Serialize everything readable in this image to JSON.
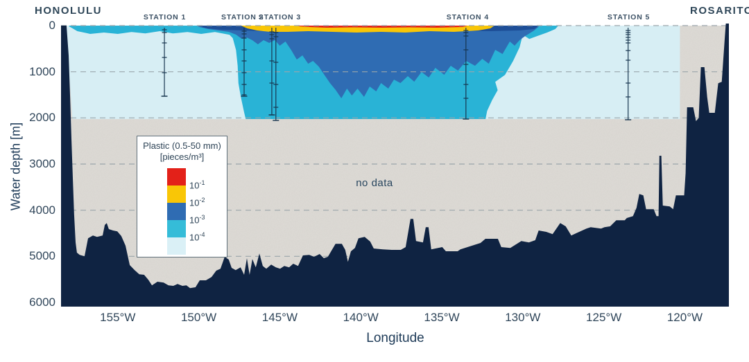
{
  "chart_data": {
    "type": "area",
    "subtype": "ocean-transect-filled-contour",
    "endpoints": {
      "left": "HONOLULU",
      "right": "ROSARITO"
    },
    "x_axis": {
      "label": "Longitude",
      "tick_values": [
        155,
        150,
        145,
        140,
        135,
        130,
        125,
        120
      ],
      "tick_suffix": "°W",
      "domain_degW": [
        158.5,
        117.28
      ]
    },
    "y_axis": {
      "label": "Water depth [m]",
      "tick_values": [
        0,
        1000,
        2000,
        3000,
        4000,
        5000,
        6000
      ],
      "domain": [
        0,
        6000
      ]
    },
    "gridline_depths": [
      0,
      1000,
      2000,
      3000,
      4000,
      5000
    ],
    "no_data_label": "no data",
    "data_region": {
      "lon_extent_degW": [
        158.2,
        120.3
      ],
      "depth_extent_m": [
        0,
        2025
      ]
    },
    "legend": {
      "title_line1": "Plastic (0.5-50 mm)",
      "title_line2": "[pieces/m³]",
      "bins": [
        {
          "color": "#e32119",
          "boundary_base": "10",
          "boundary_exp": "-1"
        },
        {
          "color": "#f9c606",
          "boundary_base": "10",
          "boundary_exp": "-2"
        },
        {
          "color": "#2f6cb3",
          "boundary_base": "10",
          "boundary_exp": "-3"
        },
        {
          "color": "#35bcd8",
          "boundary_base": "10",
          "boundary_exp": "-4"
        },
        {
          "color": "#daf0f6",
          "boundary_base": "",
          "boundary_exp": ""
        }
      ]
    },
    "stations": [
      {
        "label": "STATION 1",
        "label_lon": 152.1,
        "casts": [
          {
            "lon": 152.12,
            "max_depth": 1530,
            "tick_depths": [
              90,
              150,
              375,
              690,
              1020,
              1530
            ]
          }
        ]
      },
      {
        "label": "STATION 2",
        "label_lon": 147.3,
        "casts": [
          {
            "lon": 147.2,
            "max_depth": 1530,
            "tick_depths": [
              120,
              180,
              270,
              525,
              765,
              1020,
              1275,
              1500
            ]
          }
        ]
      },
      {
        "label": "STATION 3",
        "label_lon": 145.0,
        "casts": [
          {
            "lon": 145.49,
            "max_depth": 1935,
            "tick_depths": [
              135,
              195,
              285,
              765,
              1245,
              1935
            ]
          },
          {
            "lon": 145.24,
            "max_depth": 2055,
            "tick_depths": [
              150,
              240,
              795,
              1275,
              1770
            ]
          }
        ]
      },
      {
        "label": "STATION 4",
        "label_lon": 133.4,
        "casts": [
          {
            "lon": 133.51,
            "max_depth": 2025,
            "tick_depths": [
              105,
              150,
              225,
              525,
              840,
              1275,
              1575
            ]
          }
        ]
      },
      {
        "label": "STATION 5",
        "label_lon": 123.46,
        "casts": [
          {
            "lon": 123.5,
            "max_depth": 2040,
            "tick_depths": [
              105,
              150,
              195,
              255,
              315,
              375,
              540,
              750,
              1245,
              1545
            ]
          }
        ]
      }
    ],
    "bands": {
      "lightcyan": [
        [
          158.2,
          0
        ],
        [
          120.3,
          0
        ],
        [
          120.3,
          2025
        ],
        [
          157.8,
          2025
        ]
      ],
      "teal": [
        [
          158.0,
          0
        ],
        [
          127.8,
          0
        ],
        [
          128.0,
          75
        ],
        [
          128.5,
          150
        ],
        [
          129.1,
          225
        ],
        [
          129.6,
          290
        ],
        [
          130.0,
          200
        ],
        [
          130.2,
          470
        ],
        [
          130.6,
          770
        ],
        [
          131.1,
          1070
        ],
        [
          131.7,
          1220
        ],
        [
          131.55,
          1400
        ],
        [
          131.9,
          1620
        ],
        [
          132.2,
          1850
        ],
        [
          132.3,
          2025
        ],
        [
          147.1,
          2025
        ],
        [
          147.2,
          1880
        ],
        [
          147.4,
          1550
        ],
        [
          147.55,
          1250
        ],
        [
          147.6,
          870
        ],
        [
          147.7,
          530
        ],
        [
          147.9,
          270
        ],
        [
          148.1,
          200
        ],
        [
          149.0,
          140
        ],
        [
          149.85,
          180
        ],
        [
          150.7,
          140
        ],
        [
          151.6,
          170
        ],
        [
          152.4,
          120
        ],
        [
          153.3,
          170
        ],
        [
          154.15,
          140
        ],
        [
          155.0,
          180
        ],
        [
          155.85,
          150
        ],
        [
          156.7,
          180
        ],
        [
          157.5,
          120
        ],
        [
          157.86,
          45
        ],
        [
          158.0,
          20
        ]
      ],
      "blue": [
        [
          150.1,
          20
        ],
        [
          129.0,
          20
        ],
        [
          129.3,
          105
        ],
        [
          129.85,
          225
        ],
        [
          130.2,
          315
        ],
        [
          130.5,
          435
        ],
        [
          130.8,
          345
        ],
        [
          131.25,
          615
        ],
        [
          131.7,
          525
        ],
        [
          132.1,
          825
        ],
        [
          132.5,
          720
        ],
        [
          132.95,
          870
        ],
        [
          133.5,
          765
        ],
        [
          134.0,
          975
        ],
        [
          134.45,
          870
        ],
        [
          134.85,
          1065
        ],
        [
          135.4,
          915
        ],
        [
          135.8,
          1125
        ],
        [
          136.25,
          1005
        ],
        [
          136.7,
          1215
        ],
        [
          137.1,
          1095
        ],
        [
          137.55,
          1245
        ],
        [
          137.95,
          1170
        ],
        [
          138.3,
          1365
        ],
        [
          138.75,
          1245
        ],
        [
          139.05,
          1425
        ],
        [
          139.45,
          1320
        ],
        [
          139.8,
          1545
        ],
        [
          140.2,
          1365
        ],
        [
          140.55,
          1515
        ],
        [
          140.85,
          1365
        ],
        [
          141.2,
          1575
        ],
        [
          141.55,
          1395
        ],
        [
          141.9,
          1245
        ],
        [
          142.25,
          1065
        ],
        [
          142.6,
          885
        ],
        [
          142.95,
          765
        ],
        [
          143.25,
          825
        ],
        [
          143.6,
          645
        ],
        [
          143.95,
          735
        ],
        [
          144.3,
          525
        ],
        [
          144.65,
          345
        ],
        [
          145.0,
          435
        ],
        [
          145.3,
          315
        ],
        [
          145.65,
          375
        ],
        [
          146.0,
          315
        ],
        [
          146.35,
          405
        ],
        [
          146.7,
          315
        ],
        [
          147.05,
          255
        ],
        [
          147.35,
          285
        ],
        [
          147.7,
          195
        ],
        [
          148.15,
          135
        ],
        [
          148.8,
          105
        ],
        [
          149.4,
          75
        ]
      ],
      "darkstrip": [
        [
          150.15,
          0
        ],
        [
          129.0,
          0
        ],
        [
          129.3,
          75
        ],
        [
          130.2,
          105
        ],
        [
          132.0,
          120
        ],
        [
          134.5,
          105
        ],
        [
          137.0,
          120
        ],
        [
          139.5,
          105
        ],
        [
          142.0,
          120
        ],
        [
          144.5,
          105
        ],
        [
          146.0,
          120
        ],
        [
          147.3,
          105
        ],
        [
          148.6,
          90
        ],
        [
          149.5,
          60
        ]
      ],
      "yellow": [
        [
          147.4,
          0
        ],
        [
          131.75,
          0
        ],
        [
          132.0,
          60
        ],
        [
          132.75,
          105
        ],
        [
          134.25,
          135
        ],
        [
          135.75,
          120
        ],
        [
          137.25,
          150
        ],
        [
          138.75,
          135
        ],
        [
          140.25,
          150
        ],
        [
          141.75,
          135
        ],
        [
          143.25,
          120
        ],
        [
          144.5,
          135
        ],
        [
          145.6,
          135
        ],
        [
          146.4,
          105
        ],
        [
          147.0,
          60
        ]
      ],
      "red": [
        [
          144.0,
          0
        ],
        [
          133.4,
          0
        ],
        [
          133.7,
          30
        ],
        [
          135.3,
          45
        ],
        [
          137.0,
          38
        ],
        [
          138.7,
          45
        ],
        [
          140.4,
          38
        ],
        [
          142.1,
          45
        ],
        [
          143.2,
          30
        ],
        [
          143.8,
          15
        ]
      ]
    },
    "seafloor": [
      [
        158.5,
        0
      ],
      [
        158.16,
        0
      ],
      [
        158.03,
        650
      ],
      [
        157.94,
        1550
      ],
      [
        157.86,
        2450
      ],
      [
        157.77,
        3350
      ],
      [
        157.69,
        4100
      ],
      [
        157.6,
        4700
      ],
      [
        157.52,
        4920
      ],
      [
        157.35,
        4970
      ],
      [
        157.05,
        5000
      ],
      [
        156.83,
        4610
      ],
      [
        156.53,
        4550
      ],
      [
        156.28,
        4580
      ],
      [
        155.93,
        4550
      ],
      [
        155.8,
        4320
      ],
      [
        155.68,
        4280
      ],
      [
        155.55,
        4410
      ],
      [
        155.29,
        4440
      ],
      [
        155.03,
        4460
      ],
      [
        154.78,
        4560
      ],
      [
        154.52,
        4770
      ],
      [
        154.26,
        5190
      ],
      [
        153.96,
        5300
      ],
      [
        153.67,
        5390
      ],
      [
        153.37,
        5400
      ],
      [
        153.11,
        5510
      ],
      [
        152.89,
        5630
      ],
      [
        152.55,
        5550
      ],
      [
        152.17,
        5570
      ],
      [
        151.87,
        5630
      ],
      [
        151.57,
        5640
      ],
      [
        151.31,
        5600
      ],
      [
        151.01,
        5640
      ],
      [
        150.76,
        5630
      ],
      [
        150.54,
        5690
      ],
      [
        150.2,
        5670
      ],
      [
        149.94,
        5520
      ],
      [
        149.56,
        5520
      ],
      [
        149.21,
        5450
      ],
      [
        148.92,
        5310
      ],
      [
        148.66,
        5270
      ],
      [
        148.4,
        5010
      ],
      [
        148.15,
        5070
      ],
      [
        147.97,
        5250
      ],
      [
        147.72,
        5300
      ],
      [
        147.42,
        5240
      ],
      [
        147.2,
        5400
      ],
      [
        147.03,
        5040
      ],
      [
        146.86,
        5400
      ],
      [
        146.69,
        5060
      ],
      [
        146.48,
        5240
      ],
      [
        146.26,
        4940
      ],
      [
        146.05,
        5210
      ],
      [
        145.83,
        5270
      ],
      [
        145.53,
        5180
      ],
      [
        145.24,
        5240
      ],
      [
        144.98,
        5270
      ],
      [
        144.72,
        5210
      ],
      [
        144.42,
        5240
      ],
      [
        144.17,
        5160
      ],
      [
        143.87,
        5210
      ],
      [
        143.57,
        4980
      ],
      [
        143.18,
        4970
      ],
      [
        142.88,
        5010
      ],
      [
        142.54,
        4950
      ],
      [
        142.28,
        5040
      ],
      [
        142.03,
        5010
      ],
      [
        141.81,
        4880
      ],
      [
        141.56,
        4730
      ],
      [
        141.17,
        4730
      ],
      [
        140.96,
        4860
      ],
      [
        140.79,
        5120
      ],
      [
        140.61,
        4890
      ],
      [
        140.36,
        4820
      ],
      [
        140.14,
        4610
      ],
      [
        139.76,
        4580
      ],
      [
        139.42,
        4680
      ],
      [
        139.2,
        4830
      ],
      [
        138.65,
        4850
      ],
      [
        138.09,
        4860
      ],
      [
        137.53,
        4860
      ],
      [
        137.23,
        4800
      ],
      [
        136.93,
        4190
      ],
      [
        136.76,
        4190
      ],
      [
        136.59,
        4670
      ],
      [
        136.16,
        4700
      ],
      [
        135.99,
        4370
      ],
      [
        135.82,
        4370
      ],
      [
        135.65,
        4850
      ],
      [
        134.97,
        4800
      ],
      [
        134.75,
        4890
      ],
      [
        134.02,
        4890
      ],
      [
        133.85,
        4850
      ],
      [
        132.61,
        4710
      ],
      [
        132.31,
        4620
      ],
      [
        131.54,
        4620
      ],
      [
        131.33,
        4800
      ],
      [
        130.77,
        4820
      ],
      [
        130.09,
        4670
      ],
      [
        129.62,
        4700
      ],
      [
        129.23,
        4650
      ],
      [
        129.02,
        4440
      ],
      [
        128.55,
        4470
      ],
      [
        128.16,
        4520
      ],
      [
        127.69,
        4280
      ],
      [
        127.35,
        4350
      ],
      [
        127.01,
        4550
      ],
      [
        126.71,
        4500
      ],
      [
        126.07,
        4400
      ],
      [
        125.81,
        4370
      ],
      [
        125.17,
        4400
      ],
      [
        124.96,
        4370
      ],
      [
        124.61,
        4350
      ],
      [
        124.23,
        4220
      ],
      [
        123.71,
        4220
      ],
      [
        123.58,
        4170
      ],
      [
        123.2,
        4130
      ],
      [
        122.98,
        3950
      ],
      [
        122.81,
        3650
      ],
      [
        122.56,
        3680
      ],
      [
        122.39,
        3980
      ],
      [
        121.92,
        3980
      ],
      [
        121.75,
        4130
      ],
      [
        121.62,
        4130
      ],
      [
        121.57,
        2820
      ],
      [
        121.45,
        2820
      ],
      [
        121.36,
        3900
      ],
      [
        120.93,
        3920
      ],
      [
        120.72,
        3980
      ],
      [
        120.55,
        3680
      ],
      [
        120.04,
        3680
      ],
      [
        119.95,
        3200
      ],
      [
        119.86,
        1770
      ],
      [
        119.48,
        1770
      ],
      [
        119.31,
        2070
      ],
      [
        119.14,
        2000
      ],
      [
        119.01,
        900
      ],
      [
        118.79,
        900
      ],
      [
        118.62,
        1550
      ],
      [
        118.49,
        1890
      ],
      [
        118.15,
        1890
      ],
      [
        117.94,
        1250
      ],
      [
        117.72,
        1220
      ],
      [
        117.55,
        350
      ],
      [
        117.47,
        -45
      ],
      [
        117.28,
        -45
      ]
    ],
    "colors": {
      "seafloor_navy": "#0f2342",
      "no_data_gray": "#dfdcd7",
      "lightcyan": "#d7eef4",
      "teal": "#29b3d6",
      "blue": "#2f6cb3",
      "dark_surface_blue": "#1d4e97",
      "yellow": "#f9c606",
      "red": "#e32119",
      "gridline": "#9aa5aa",
      "station_line": "#17354f",
      "axis_text": "#30465a"
    }
  }
}
